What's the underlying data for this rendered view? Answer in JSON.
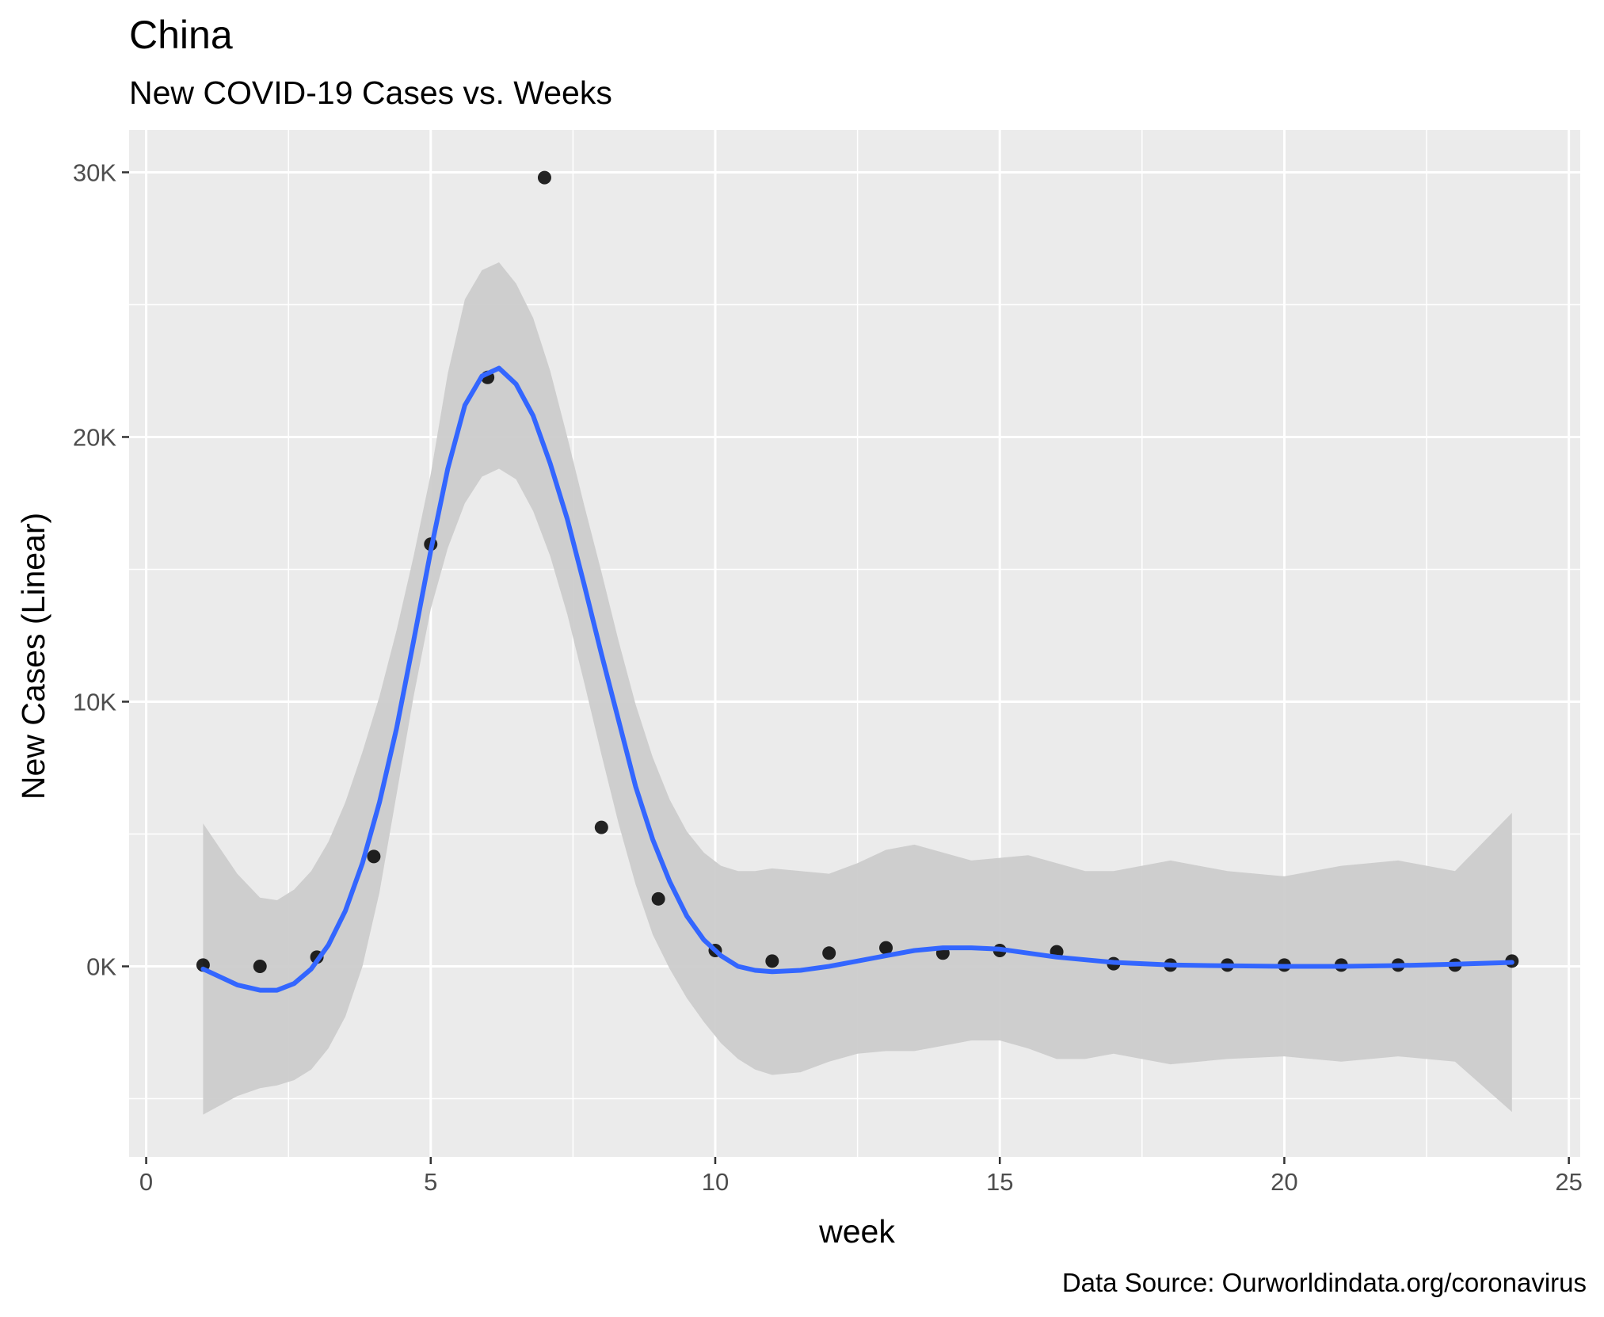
{
  "chart_data": {
    "type": "scatter",
    "title": "China",
    "subtitle": "New COVID-19 Cases vs. Weeks",
    "xlabel": "week",
    "ylabel": "New Cases (Linear)",
    "caption": "Data Source: Ourworldindata.org/coronavirus",
    "xlim": [
      -0.3,
      25.2
    ],
    "ylim": [
      -7200,
      31600
    ],
    "x_ticks": [
      0,
      5,
      10,
      15,
      20,
      25
    ],
    "x_tick_labels": [
      "0",
      "5",
      "10",
      "15",
      "20",
      "25"
    ],
    "y_ticks": [
      0,
      10000,
      20000,
      30000
    ],
    "y_tick_labels": [
      "0K",
      "10K",
      "20K",
      "30K"
    ],
    "x_minor_ticks": [
      2.5,
      7.5,
      12.5,
      17.5,
      22.5
    ],
    "y_minor_ticks": [
      -5000,
      5000,
      15000,
      25000
    ],
    "grid": true,
    "legend": "none",
    "colors": {
      "panel_background": "#ebebeb",
      "grid_line": "#ffffff",
      "point": "#000000",
      "smooth_line": "#3366ff",
      "ribbon": "#cccccc"
    },
    "points": {
      "x": [
        1,
        2,
        3,
        4,
        5,
        6,
        7,
        8,
        9,
        10,
        11,
        12,
        13,
        14,
        15,
        16,
        17,
        18,
        19,
        20,
        21,
        22,
        23,
        24
      ],
      "y": [
        50,
        0,
        350,
        4150,
        15950,
        22250,
        29800,
        5250,
        2550,
        600,
        200,
        500,
        700,
        500,
        600,
        550,
        100,
        50,
        50,
        50,
        50,
        50,
        50,
        200
      ]
    },
    "smooth": {
      "x": [
        1,
        1.6,
        2,
        2.3,
        2.6,
        2.9,
        3.2,
        3.5,
        3.8,
        4.1,
        4.4,
        4.7,
        5,
        5.3,
        5.6,
        5.9,
        6.2,
        6.5,
        6.8,
        7.1,
        7.4,
        7.7,
        8,
        8.3,
        8.6,
        8.9,
        9.2,
        9.5,
        9.8,
        10.1,
        10.4,
        10.7,
        11,
        11.5,
        12,
        12.5,
        13,
        13.5,
        14,
        14.5,
        15,
        15.5,
        16,
        16.5,
        17,
        18,
        19,
        20,
        21,
        22,
        23,
        24
      ],
      "y": [
        -100,
        -700,
        -900,
        -900,
        -650,
        -100,
        800,
        2100,
        3900,
        6200,
        9000,
        12300,
        15700,
        18800,
        21200,
        22300,
        22600,
        22000,
        20800,
        19000,
        16900,
        14400,
        11800,
        9300,
        6800,
        4800,
        3200,
        1900,
        1000,
        400,
        0,
        -150,
        -200,
        -150,
        0,
        200,
        400,
        600,
        700,
        700,
        650,
        500,
        350,
        250,
        150,
        50,
        20,
        0,
        0,
        30,
        80,
        150
      ],
      "lower": [
        -5600,
        -4900,
        -4600,
        -4500,
        -4300,
        -3900,
        -3100,
        -1900,
        0,
        2800,
        6500,
        10200,
        13500,
        15800,
        17500,
        18500,
        18800,
        18400,
        17200,
        15500,
        13300,
        10700,
        8000,
        5400,
        3100,
        1200,
        -100,
        -1200,
        -2100,
        -2900,
        -3500,
        -3900,
        -4100,
        -4000,
        -3600,
        -3300,
        -3200,
        -3200,
        -3000,
        -2800,
        -2800,
        -3100,
        -3500,
        -3500,
        -3300,
        -3700,
        -3500,
        -3400,
        -3600,
        -3400,
        -3600,
        -5500
      ],
      "upper": [
        5400,
        3500,
        2600,
        2500,
        2900,
        3600,
        4700,
        6200,
        8100,
        10200,
        12700,
        15500,
        18600,
        22400,
        25200,
        26300,
        26600,
        25800,
        24500,
        22500,
        20000,
        17400,
        14900,
        12300,
        9900,
        7900,
        6300,
        5100,
        4300,
        3800,
        3600,
        3600,
        3700,
        3600,
        3500,
        3900,
        4400,
        4600,
        4300,
        4000,
        4100,
        4200,
        3900,
        3600,
        3600,
        4000,
        3600,
        3400,
        3800,
        4000,
        3600,
        5800
      ]
    }
  }
}
